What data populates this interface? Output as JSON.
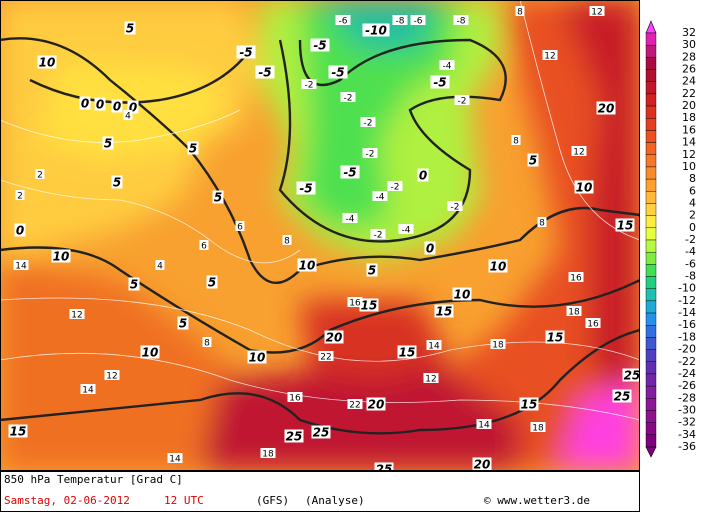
{
  "map": {
    "contour_labels": [
      10,
      -10,
      5,
      -5,
      -5,
      -5,
      -5,
      0,
      0,
      0,
      0,
      -5,
      5,
      5,
      5,
      5,
      -5,
      -5,
      0,
      5,
      10,
      20,
      10,
      5,
      5,
      5,
      10,
      10,
      10,
      5,
      10,
      10,
      15,
      15,
      15,
      15,
      20,
      15,
      20,
      15,
      15,
      25,
      25,
      25,
      20,
      25,
      25,
      0,
      0,
      14,
      12,
      12,
      14,
      14,
      16,
      16,
      18,
      18,
      16,
      16,
      12,
      8,
      8,
      8,
      8,
      6,
      6,
      4,
      4,
      2,
      2,
      -4,
      -2,
      -2,
      -4,
      -2,
      -4,
      -2,
      -2,
      -2,
      -2,
      -6,
      -8,
      -6,
      -8,
      -2,
      -4,
      8,
      12,
      12,
      14,
      14,
      18,
      12,
      22,
      22,
      18
    ]
  },
  "colorbar": {
    "levels": [
      32,
      30,
      28,
      26,
      24,
      22,
      20,
      18,
      16,
      14,
      12,
      10,
      8,
      6,
      4,
      2,
      0,
      -2,
      -4,
      -6,
      -8,
      -10,
      -12,
      -14,
      -16,
      -18,
      -20,
      -22,
      -24,
      -26,
      -28,
      -30,
      -32,
      -34,
      -36
    ],
    "colors": [
      "#ff40ff",
      "#e020b0",
      "#c01878",
      "#a80c40",
      "#b01030",
      "#c01828",
      "#d02020",
      "#dc3020",
      "#e44020",
      "#ec5020",
      "#f06424",
      "#f47828",
      "#f88c2c",
      "#fca030",
      "#ffb838",
      "#ffd040",
      "#ffec40",
      "#e8ff40",
      "#b8f840",
      "#80ec40",
      "#40e050",
      "#20d080",
      "#20c0b0",
      "#20a8d8",
      "#2890e8",
      "#3070e0",
      "#4058d0",
      "#5040c0",
      "#6030b0",
      "#7028a8",
      "#8020a0",
      "#8c1898",
      "#901090",
      "#880888",
      "#800080"
    ]
  },
  "footer": {
    "title": "850 hPa Temperatur [Grad C]",
    "date": "Samstag, 02-06-2012",
    "time": "12 UTC",
    "model": "(GFS)",
    "run": "(Analyse)",
    "copyright": "© www.wetter3.de"
  }
}
